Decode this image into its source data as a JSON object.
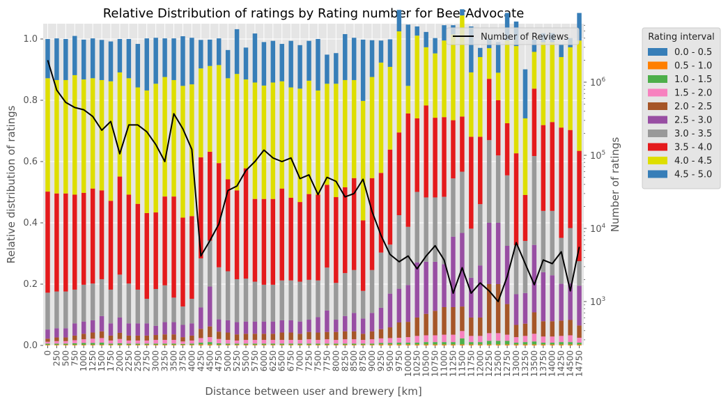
{
  "chart_data": {
    "type": "bar",
    "stacked": true,
    "title": "Relative Distribution of ratings by Rating number for BeerAdvocate",
    "xlabel": "Distance between user and brewery [km]",
    "ylabel": "Relative distribution of ratings",
    "ylabel_right": "Number of ratings",
    "ylim": [
      0,
      1.05
    ],
    "y_ticks": [
      "0.0",
      "0.2",
      "0.4",
      "0.6",
      "0.8",
      "1.0"
    ],
    "y_right_scale": "log",
    "y_right_ticks": [
      "10^3",
      "10^4",
      "10^5",
      "10^6"
    ],
    "grid": true,
    "legend_position": "outside-right",
    "legend_title": "Rating interval",
    "categories": [
      "0",
      "250",
      "500",
      "750",
      "1000",
      "1250",
      "1500",
      "1750",
      "2000",
      "2250",
      "2500",
      "2750",
      "3000",
      "3250",
      "3500",
      "3750",
      "4000",
      "4250",
      "4500",
      "4750",
      "5000",
      "5250",
      "5500",
      "5750",
      "6000",
      "6250",
      "6500",
      "6750",
      "7000",
      "7250",
      "7500",
      "7750",
      "8000",
      "8250",
      "8500",
      "8750",
      "9000",
      "9250",
      "9500",
      "9750",
      "10000",
      "10250",
      "10500",
      "10750",
      "11000",
      "11250",
      "11500",
      "11750",
      "12000",
      "12250",
      "12500",
      "12750",
      "13000",
      "13250",
      "13500",
      "13750",
      "14000",
      "14250",
      "14500",
      "14750"
    ],
    "series": [
      {
        "name": "0.0 - 0.5",
        "color": "#377eb8",
        "values": [
          0,
          0,
          0,
          0,
          0,
          0,
          0,
          0,
          0,
          0,
          0,
          0,
          0,
          0,
          0,
          0,
          0,
          0,
          0,
          0,
          0,
          0,
          0,
          0,
          0,
          0,
          0,
          0,
          0,
          0,
          0,
          0,
          0,
          0,
          0,
          0,
          0,
          0,
          0,
          0,
          0,
          0,
          0,
          0,
          0,
          0,
          0,
          0,
          0,
          0,
          0,
          0,
          0,
          0,
          0,
          0,
          0,
          0,
          0,
          0
        ]
      },
      {
        "name": "0.5 - 1.0",
        "color": "#ff7f00",
        "values": [
          0.002,
          0.002,
          0.002,
          0.002,
          0.002,
          0.002,
          0.002,
          0.002,
          0.002,
          0.002,
          0.002,
          0.002,
          0.002,
          0.002,
          0.002,
          0.002,
          0.002,
          0.003,
          0.003,
          0.002,
          0.002,
          0.002,
          0.002,
          0.002,
          0.002,
          0.002,
          0.002,
          0.002,
          0.002,
          0.002,
          0.002,
          0.002,
          0.002,
          0.002,
          0.002,
          0.002,
          0.002,
          0.003,
          0.003,
          0.003,
          0.003,
          0.003,
          0.003,
          0.003,
          0.003,
          0.003,
          0.003,
          0.003,
          0.003,
          0.003,
          0.003,
          0.003,
          0.003,
          0.003,
          0.003,
          0.003,
          0.003,
          0.003,
          0.003,
          0.003
        ]
      },
      {
        "name": "1.0 - 1.5",
        "color": "#4daf4a",
        "values": [
          0.004,
          0.004,
          0.004,
          0.005,
          0.006,
          0.006,
          0.007,
          0.004,
          0.005,
          0.004,
          0.004,
          0.004,
          0.004,
          0.004,
          0.004,
          0.003,
          0.004,
          0.006,
          0.008,
          0.005,
          0.004,
          0.004,
          0.004,
          0.004,
          0.004,
          0.004,
          0.004,
          0.004,
          0.004,
          0.004,
          0.004,
          0.004,
          0.004,
          0.004,
          0.004,
          0.004,
          0.004,
          0.005,
          0.005,
          0.006,
          0.006,
          0.006,
          0.008,
          0.008,
          0.008,
          0.008,
          0.02,
          0.008,
          0.008,
          0.012,
          0.012,
          0.012,
          0.006,
          0.008,
          0.01,
          0.006,
          0.006,
          0.008,
          0.008,
          0.006
        ]
      },
      {
        "name": "1.5 - 2.0",
        "color": "#f781bf",
        "values": [
          0.006,
          0.008,
          0.008,
          0.01,
          0.012,
          0.014,
          0.015,
          0.01,
          0.014,
          0.01,
          0.01,
          0.01,
          0.012,
          0.012,
          0.012,
          0.008,
          0.01,
          0.015,
          0.016,
          0.014,
          0.012,
          0.01,
          0.012,
          0.012,
          0.012,
          0.012,
          0.012,
          0.012,
          0.012,
          0.014,
          0.012,
          0.014,
          0.012,
          0.014,
          0.014,
          0.012,
          0.014,
          0.015,
          0.016,
          0.016,
          0.018,
          0.022,
          0.022,
          0.022,
          0.024,
          0.024,
          0.024,
          0.02,
          0.02,
          0.025,
          0.025,
          0.02,
          0.018,
          0.02,
          0.025,
          0.02,
          0.02,
          0.02,
          0.022,
          0.016
        ]
      },
      {
        "name": "2.0 - 2.5",
        "color": "#a65628",
        "values": [
          0.01,
          0.012,
          0.012,
          0.015,
          0.018,
          0.02,
          0.022,
          0.016,
          0.02,
          0.016,
          0.016,
          0.016,
          0.016,
          0.018,
          0.018,
          0.014,
          0.016,
          0.03,
          0.035,
          0.024,
          0.024,
          0.02,
          0.02,
          0.02,
          0.02,
          0.02,
          0.024,
          0.024,
          0.02,
          0.024,
          0.024,
          0.024,
          0.026,
          0.026,
          0.026,
          0.02,
          0.026,
          0.03,
          0.035,
          0.05,
          0.05,
          0.06,
          0.07,
          0.08,
          0.09,
          0.09,
          0.08,
          0.06,
          0.06,
          0.16,
          0.16,
          0.1,
          0.04,
          0.04,
          0.07,
          0.05,
          0.05,
          0.05,
          0.05,
          0.04
        ]
      },
      {
        "name": "2.5 - 3.0",
        "color": "#984ea3",
        "values": [
          0.03,
          0.03,
          0.03,
          0.04,
          0.04,
          0.04,
          0.05,
          0.04,
          0.05,
          0.04,
          0.04,
          0.04,
          0.03,
          0.04,
          0.04,
          0.04,
          0.04,
          0.07,
          0.13,
          0.04,
          0.04,
          0.04,
          0.04,
          0.04,
          0.04,
          0.04,
          0.04,
          0.04,
          0.04,
          0.04,
          0.05,
          0.07,
          0.04,
          0.05,
          0.06,
          0.05,
          0.06,
          0.07,
          0.11,
          0.11,
          0.12,
          0.18,
          0.17,
          0.16,
          0.14,
          0.23,
          0.24,
          0.13,
          0.17,
          0.2,
          0.2,
          0.19,
          0.1,
          0.1,
          0.22,
          0.16,
          0.15,
          0.12,
          0.12,
          0.13
        ]
      },
      {
        "name": "3.0 - 3.5",
        "color": "#999999",
        "values": [
          0.12,
          0.12,
          0.12,
          0.11,
          0.12,
          0.12,
          0.12,
          0.11,
          0.14,
          0.13,
          0.11,
          0.08,
          0.12,
          0.12,
          0.08,
          0.06,
          0.08,
          0.16,
          0.15,
          0.17,
          0.16,
          0.14,
          0.14,
          0.13,
          0.12,
          0.12,
          0.13,
          0.13,
          0.13,
          0.13,
          0.12,
          0.14,
          0.12,
          0.14,
          0.14,
          0.09,
          0.14,
          0.18,
          0.16,
          0.24,
          0.19,
          0.23,
          0.21,
          0.21,
          0.22,
          0.19,
          0.2,
          0.16,
          0.2,
          0.27,
          0.22,
          0.23,
          0.16,
          0.17,
          0.29,
          0.2,
          0.21,
          0.15,
          0.18,
          0.08
        ]
      },
      {
        "name": "3.5 - 4.0",
        "color": "#e41a1c",
        "values": [
          0.33,
          0.32,
          0.32,
          0.31,
          0.3,
          0.31,
          0.29,
          0.29,
          0.32,
          0.29,
          0.28,
          0.28,
          0.25,
          0.29,
          0.33,
          0.29,
          0.27,
          0.33,
          0.29,
          0.34,
          0.3,
          0.29,
          0.36,
          0.27,
          0.28,
          0.28,
          0.3,
          0.27,
          0.26,
          0.28,
          0.28,
          0.27,
          0.28,
          0.28,
          0.3,
          0.23,
          0.3,
          0.26,
          0.31,
          0.27,
          0.37,
          0.24,
          0.3,
          0.26,
          0.26,
          0.19,
          0.18,
          0.3,
          0.22,
          0.2,
          0.18,
          0.17,
          0.3,
          0.15,
          0.22,
          0.28,
          0.29,
          0.36,
          0.32,
          0.36
        ]
      },
      {
        "name": "4.0 - 4.5",
        "color": "#dede00",
        "values": [
          0.37,
          0.37,
          0.37,
          0.39,
          0.37,
          0.36,
          0.36,
          0.39,
          0.34,
          0.38,
          0.38,
          0.4,
          0.42,
          0.39,
          0.38,
          0.43,
          0.43,
          0.29,
          0.28,
          0.32,
          0.33,
          0.38,
          0.29,
          0.38,
          0.37,
          0.38,
          0.35,
          0.36,
          0.37,
          0.37,
          0.34,
          0.33,
          0.37,
          0.35,
          0.32,
          0.39,
          0.33,
          0.36,
          0.27,
          0.33,
          0.09,
          0.27,
          0.19,
          0.21,
          0.25,
          0.28,
          0.33,
          0.21,
          0.26,
          0.1,
          0.09,
          0.27,
          0.35,
          0.25,
          0.12,
          0.27,
          0.26,
          0.23,
          0.27,
          0.36
        ]
      },
      {
        "name": "4.5 - 5.0",
        "color": "#377eb8",
        "values": [
          0.128,
          0.136,
          0.134,
          0.128,
          0.13,
          0.13,
          0.131,
          0.13,
          0.109,
          0.128,
          0.142,
          0.17,
          0.15,
          0.126,
          0.136,
          0.162,
          0.152,
          0.093,
          0.086,
          0.087,
          0.092,
          0.146,
          0.104,
          0.16,
          0.142,
          0.136,
          0.122,
          0.152,
          0.142,
          0.13,
          0.168,
          0.095,
          0.1,
          0.15,
          0.138,
          0.2,
          0.12,
          0.072,
          0.09,
          0.07,
          0.2,
          0.03,
          0.05,
          0.05,
          0.05,
          0.03,
          0.02,
          0.15,
          0.03,
          0.03,
          0.1,
          0.09,
          0.08,
          0.16,
          0.04,
          0.03,
          0.03,
          0.04,
          0.03,
          0.09
        ]
      }
    ],
    "line_series": {
      "name": "Number of Reviews",
      "color": "#000000",
      "values": [
        2000000,
        780000,
        530000,
        450000,
        420000,
        340000,
        220000,
        290000,
        105000,
        260000,
        260000,
        210000,
        140000,
        82000,
        370000,
        230000,
        120000,
        4200,
        6800,
        11500,
        33000,
        38000,
        62000,
        82000,
        118000,
        92000,
        82000,
        92000,
        48000,
        54000,
        29000,
        50000,
        44000,
        27000,
        30000,
        47000,
        17000,
        8000,
        4400,
        3500,
        4200,
        2800,
        4200,
        5800,
        3700,
        1300,
        2900,
        1300,
        1800,
        1400,
        1000,
        2200,
        6400,
        3300,
        1700,
        3700,
        3300,
        4800,
        1400,
        5600
      ]
    }
  }
}
